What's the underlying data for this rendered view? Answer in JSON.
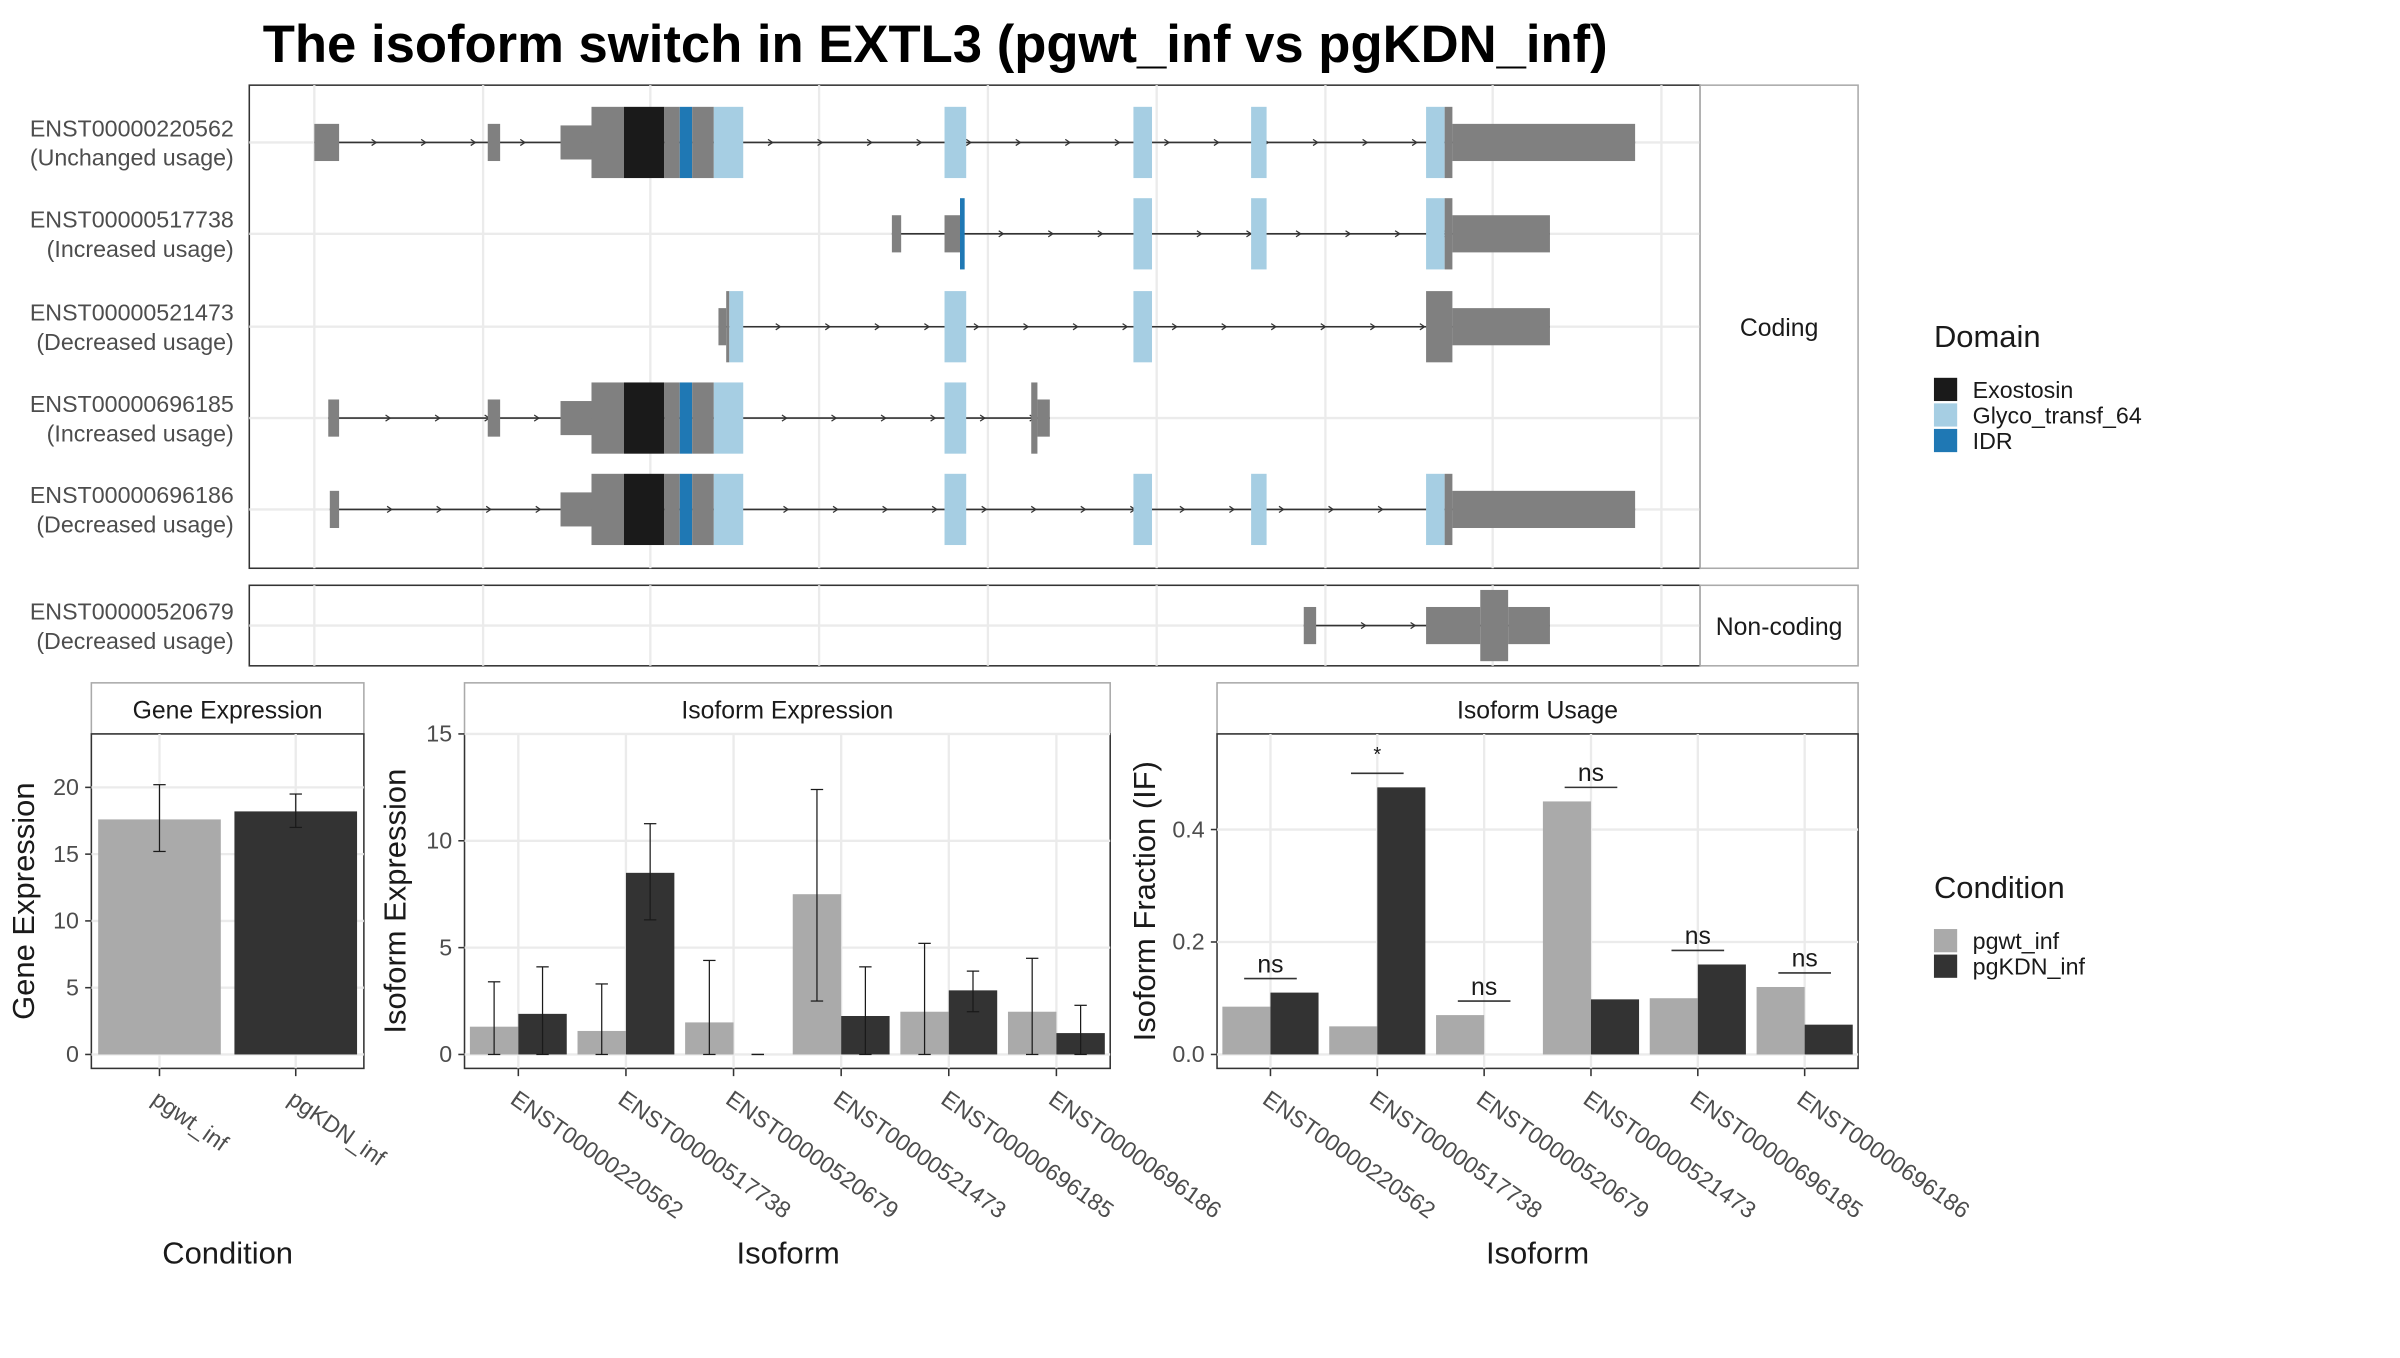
{
  "title": "The isoform switch in EXTL3 (pgwt_inf vs pgKDN_inf)",
  "structure": {
    "transcripts": [
      {
        "id": "ENST00000220562",
        "usage": "(Unchanged usage)"
      },
      {
        "id": "ENST00000517738",
        "usage": "(Increased usage)"
      },
      {
        "id": "ENST00000521473",
        "usage": "(Decreased usage)"
      },
      {
        "id": "ENST00000696185",
        "usage": "(Increased usage)"
      },
      {
        "id": "ENST00000696186",
        "usage": "(Decreased usage)"
      },
      {
        "id": "ENST00000520679",
        "usage": "(Decreased usage)"
      }
    ],
    "strip_coding": "Coding",
    "strip_noncoding": "Non-coding"
  },
  "legend_domain": {
    "title": "Domain",
    "items": [
      {
        "label": "Exostosin",
        "color": "#1a1a1a"
      },
      {
        "label": "Glyco_transf_64",
        "color": "#a6cee3"
      },
      {
        "label": "IDR",
        "color": "#1f78b4"
      }
    ]
  },
  "legend_condition": {
    "title": "Condition",
    "items": [
      {
        "label": "pgwt_inf",
        "color": "#aaaaaa"
      },
      {
        "label": "pgKDN_inf",
        "color": "#333333"
      }
    ]
  },
  "chart_data": [
    {
      "type": "bar",
      "title": "Gene Expression",
      "xlabel": "Condition",
      "ylabel": "Gene Expression",
      "ylim": [
        0,
        24
      ],
      "yticks": [
        0,
        5,
        10,
        15,
        20
      ],
      "categories": [
        "pgwt_inf",
        "pgKDN_inf"
      ],
      "values": [
        17.6,
        18.2
      ],
      "error_low": [
        15.2,
        17.0
      ],
      "error_high": [
        20.2,
        19.5
      ]
    },
    {
      "type": "bar",
      "title": "Isoform Expression",
      "xlabel": "Isoform",
      "ylabel": "Isoform Expression",
      "ylim": [
        0,
        15
      ],
      "yticks": [
        0,
        5,
        10,
        15
      ],
      "categories": [
        "ENST00000220562",
        "ENST00000517738",
        "ENST00000520679",
        "ENST00000521473",
        "ENST00000696185",
        "ENST00000696186"
      ],
      "series": [
        {
          "name": "pgwt_inf",
          "values": [
            1.3,
            1.1,
            1.5,
            7.5,
            2.0,
            2.0
          ],
          "error_low": [
            0,
            0,
            0,
            2.5,
            0,
            0
          ],
          "error_high": [
            3.4,
            3.3,
            4.4,
            12.4,
            5.2,
            4.5
          ]
        },
        {
          "name": "pgKDN_inf",
          "values": [
            1.9,
            8.5,
            0,
            1.8,
            3.0,
            1.0
          ],
          "error_low": [
            0,
            6.3,
            0,
            0,
            2.0,
            0
          ],
          "error_high": [
            4.1,
            10.8,
            0,
            4.1,
            3.9,
            2.3
          ]
        }
      ]
    },
    {
      "type": "bar",
      "title": "Isoform Usage",
      "xlabel": "Isoform",
      "ylabel": "Isoform Fraction (IF)",
      "ylim": [
        0,
        0.57
      ],
      "yticks": [
        "0.0",
        "0.2",
        "0.4"
      ],
      "categories": [
        "ENST00000220562",
        "ENST00000517738",
        "ENST00000520679",
        "ENST00000521473",
        "ENST00000696185",
        "ENST00000696186"
      ],
      "series": [
        {
          "name": "pgwt_inf",
          "values": [
            0.085,
            0.05,
            0.07,
            0.45,
            0.1,
            0.12
          ]
        },
        {
          "name": "pgKDN_inf",
          "values": [
            0.11,
            0.475,
            0.0,
            0.098,
            0.16,
            0.053
          ]
        }
      ],
      "significance": [
        "ns",
        "*",
        "ns",
        "ns",
        "ns",
        "ns"
      ]
    }
  ]
}
